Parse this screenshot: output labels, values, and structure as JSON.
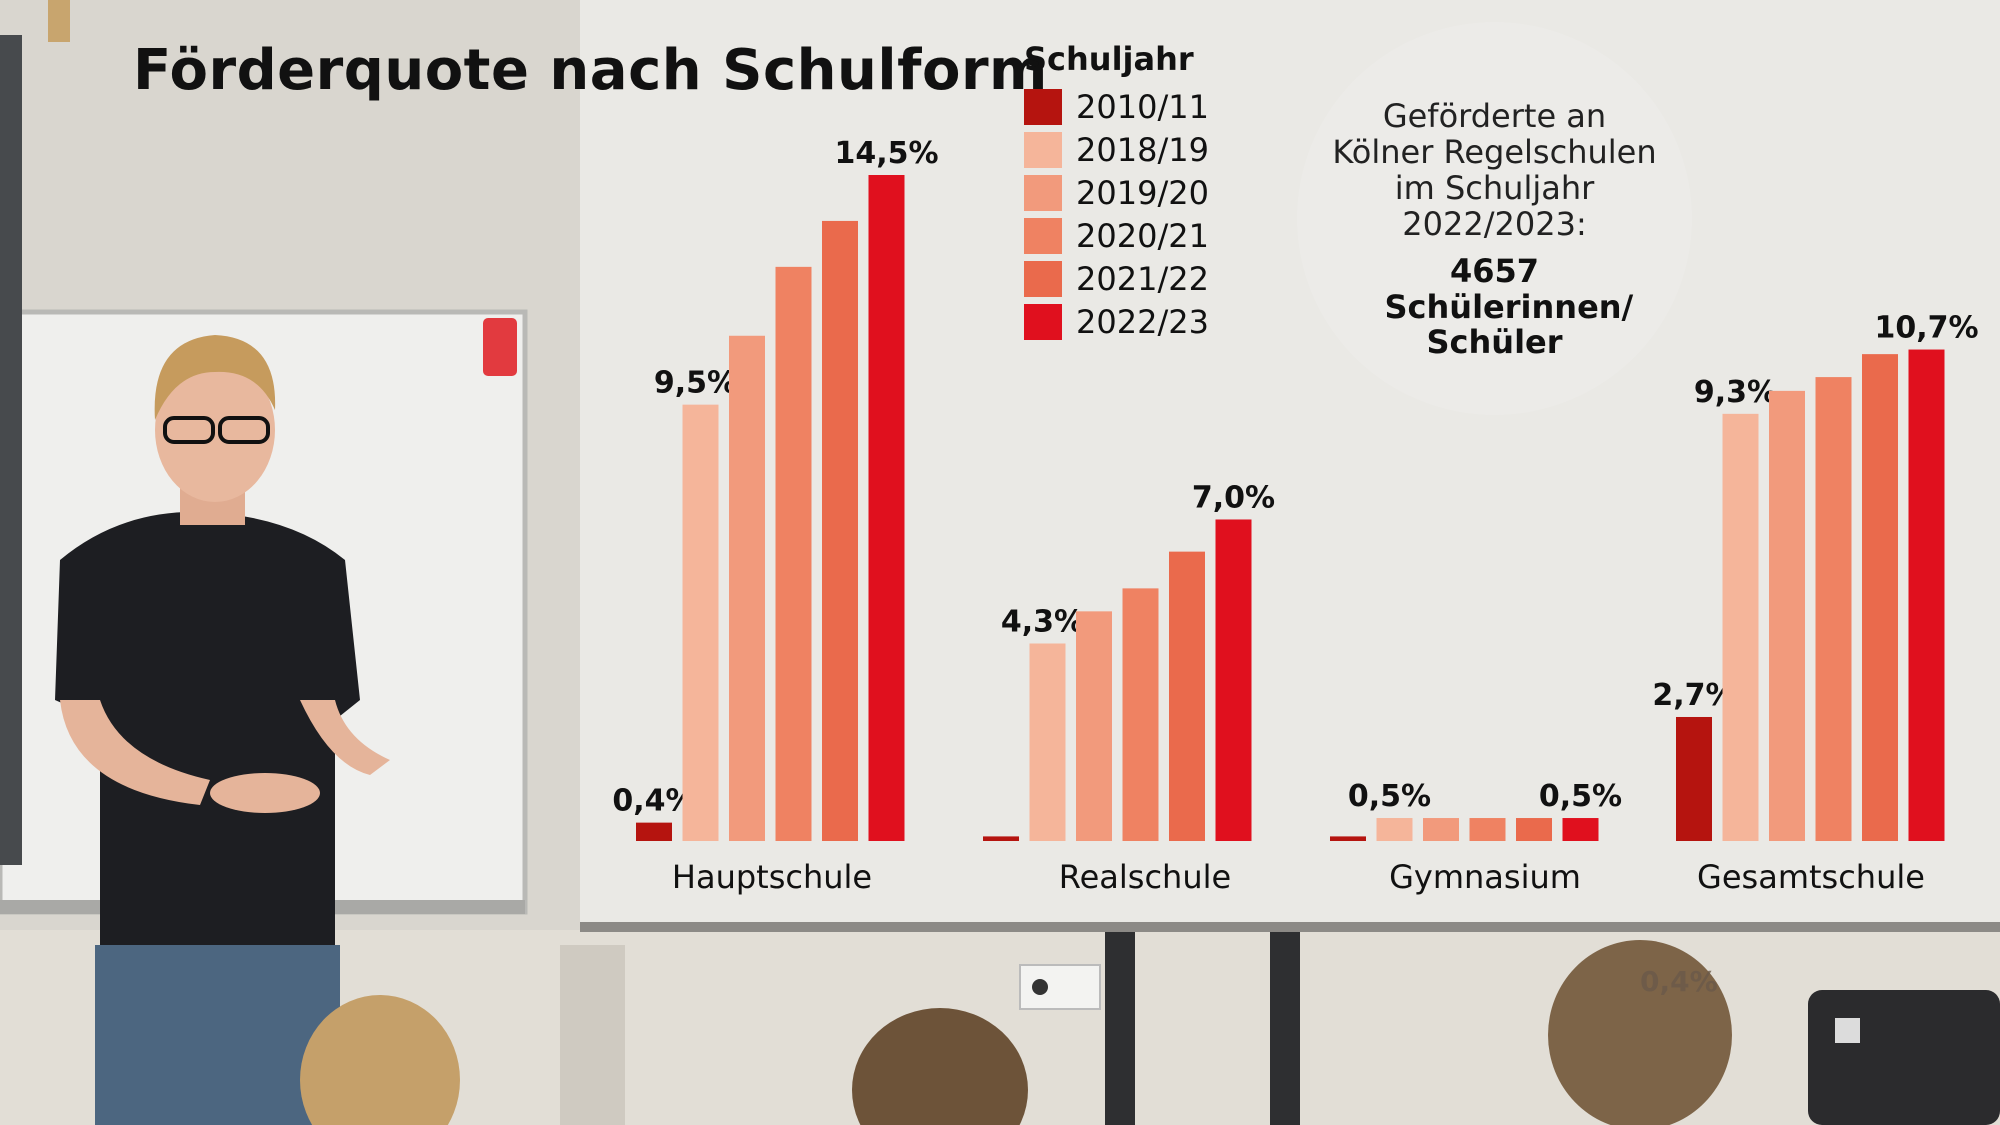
{
  "chart_data": {
    "type": "bar",
    "title": "Förderquote nach Schulform",
    "categories": [
      "Hauptschule",
      "Realschule",
      "Gymnasium",
      "Gesamtschule"
    ],
    "legend_title": "Schuljahr",
    "series": [
      {
        "name": "2010/11",
        "color": "#b5140f",
        "values": [
          0.4,
          0.1,
          0.1,
          2.7
        ]
      },
      {
        "name": "2018/19",
        "color": "#f5b59a",
        "values": [
          9.5,
          4.3,
          0.5,
          9.3
        ]
      },
      {
        "name": "2019/20",
        "color": "#f29a7c",
        "values": [
          11.0,
          5.0,
          0.5,
          9.8
        ]
      },
      {
        "name": "2020/21",
        "color": "#ef8262",
        "values": [
          12.5,
          5.5,
          0.5,
          10.1
        ]
      },
      {
        "name": "2021/22",
        "color": "#ea6a4c",
        "values": [
          13.5,
          6.3,
          0.5,
          10.6
        ]
      },
      {
        "name": "2022/23",
        "color": "#e0101e",
        "values": [
          14.5,
          7.0,
          0.5,
          10.7
        ]
      }
    ],
    "data_labels": [
      {
        "category": 0,
        "series": 0,
        "text": "0,4%"
      },
      {
        "category": 0,
        "series": 1,
        "text": "9,5%"
      },
      {
        "category": 0,
        "series": 5,
        "text": "14,5%"
      },
      {
        "category": 1,
        "series": 1,
        "text": "4,3%"
      },
      {
        "category": 1,
        "series": 5,
        "text": "7,0%"
      },
      {
        "category": 2,
        "series": 1,
        "text": "0,5%"
      },
      {
        "category": 2,
        "series": 5,
        "text": "0,5%"
      },
      {
        "category": 3,
        "series": 0,
        "text": "2,7%"
      },
      {
        "category": 3,
        "series": 1,
        "text": "9,3%"
      },
      {
        "category": 3,
        "series": 5,
        "text": "10,7%"
      }
    ],
    "ylim": [
      0,
      14.5
    ],
    "grid": false,
    "legend_position": "top-center"
  },
  "info_box": {
    "text_lines": [
      "Geförderte an",
      "Kölner Regelschulen",
      "im Schuljahr",
      "2022/2023:"
    ],
    "number": "4657",
    "unit": "Schülerinnen/ Schüler"
  },
  "stray_label": "0,4%"
}
